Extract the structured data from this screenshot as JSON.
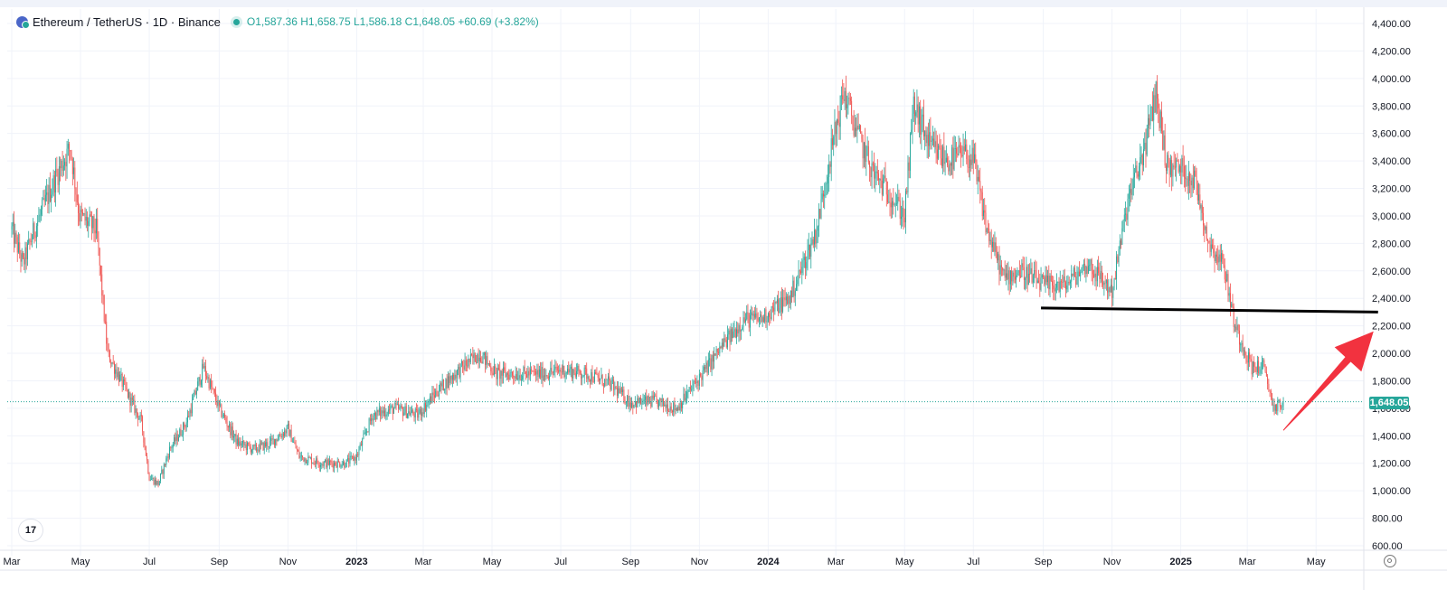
{
  "legend": {
    "symbol_text": "Ethereum / TetherUS · 1D · Binance",
    "ohlc_text": "O1,587.36 H1,658.75 L1,586.18 C1,648.05 +60.69 (+3.82%)"
  },
  "colors": {
    "up": "#26a69a",
    "down": "#ef5350",
    "line": "#000000",
    "arrow": "#f2323f"
  },
  "tv_logo": "17",
  "chart_data": {
    "type": "candlestick",
    "title": "Ethereum / TetherUS · 1D · Binance",
    "ylim": [
      600,
      4400
    ],
    "y_ticks": [
      4400,
      4200,
      4000,
      3800,
      3600,
      3400,
      3200,
      3000,
      2800,
      2600,
      2400,
      2200,
      2000,
      1800,
      1600,
      1400,
      1200,
      1000,
      800,
      600
    ],
    "y_tick_labels": [
      "4,400.00",
      "4,200.00",
      "4,000.00",
      "3,800.00",
      "3,600.00",
      "3,400.00",
      "3,200.00",
      "3,000.00",
      "2,800.00",
      "2,600.00",
      "2,400.00",
      "2,200.00",
      "2,000.00",
      "1,800.00",
      "1,600.00",
      "1,400.00",
      "1,200.00",
      "1,000.00",
      "800.00",
      "600.00"
    ],
    "x_ticks": [
      {
        "label": "Mar",
        "t": 0,
        "bold": false
      },
      {
        "label": "May",
        "t": 61,
        "bold": false
      },
      {
        "label": "Jul",
        "t": 122,
        "bold": false
      },
      {
        "label": "Sep",
        "t": 184,
        "bold": false
      },
      {
        "label": "Nov",
        "t": 245,
        "bold": false
      },
      {
        "label": "2023",
        "t": 306,
        "bold": true
      },
      {
        "label": "Mar",
        "t": 365,
        "bold": false
      },
      {
        "label": "May",
        "t": 426,
        "bold": false
      },
      {
        "label": "Jul",
        "t": 487,
        "bold": false
      },
      {
        "label": "Sep",
        "t": 549,
        "bold": false
      },
      {
        "label": "Nov",
        "t": 610,
        "bold": false
      },
      {
        "label": "2024",
        "t": 671,
        "bold": true
      },
      {
        "label": "Mar",
        "t": 731,
        "bold": false
      },
      {
        "label": "May",
        "t": 792,
        "bold": false
      },
      {
        "label": "Jul",
        "t": 853,
        "bold": false
      },
      {
        "label": "Sep",
        "t": 915,
        "bold": false
      },
      {
        "label": "Nov",
        "t": 976,
        "bold": false
      },
      {
        "label": "2025",
        "t": 1037,
        "bold": true
      },
      {
        "label": "Mar",
        "t": 1096,
        "bold": false
      },
      {
        "label": "May",
        "t": 1157,
        "bold": false
      }
    ],
    "x_range_days": [
      0,
      1196
    ],
    "close_path_approx": [
      [
        0,
        2900
      ],
      [
        10,
        2650
      ],
      [
        20,
        2900
      ],
      [
        40,
        3300
      ],
      [
        52,
        3500
      ],
      [
        60,
        3000
      ],
      [
        75,
        2900
      ],
      [
        85,
        2000
      ],
      [
        100,
        1750
      ],
      [
        115,
        1500
      ],
      [
        122,
        1100
      ],
      [
        130,
        1050
      ],
      [
        140,
        1300
      ],
      [
        155,
        1500
      ],
      [
        170,
        1900
      ],
      [
        184,
        1600
      ],
      [
        200,
        1350
      ],
      [
        215,
        1300
      ],
      [
        230,
        1350
      ],
      [
        245,
        1450
      ],
      [
        255,
        1250
      ],
      [
        275,
        1200
      ],
      [
        296,
        1200
      ],
      [
        306,
        1250
      ],
      [
        320,
        1550
      ],
      [
        340,
        1600
      ],
      [
        360,
        1550
      ],
      [
        380,
        1750
      ],
      [
        400,
        1900
      ],
      [
        415,
        2000
      ],
      [
        430,
        1850
      ],
      [
        450,
        1850
      ],
      [
        470,
        1850
      ],
      [
        490,
        1880
      ],
      [
        510,
        1850
      ],
      [
        530,
        1780
      ],
      [
        549,
        1640
      ],
      [
        570,
        1650
      ],
      [
        590,
        1600
      ],
      [
        610,
        1820
      ],
      [
        630,
        2050
      ],
      [
        650,
        2250
      ],
      [
        665,
        2250
      ],
      [
        680,
        2350
      ],
      [
        690,
        2400
      ],
      [
        700,
        2600
      ],
      [
        714,
        2900
      ],
      [
        725,
        3400
      ],
      [
        738,
        3900
      ],
      [
        750,
        3600
      ],
      [
        765,
        3300
      ],
      [
        780,
        3150
      ],
      [
        792,
        3000
      ],
      [
        800,
        3800
      ],
      [
        815,
        3500
      ],
      [
        830,
        3400
      ],
      [
        845,
        3450
      ],
      [
        853,
        3400
      ],
      [
        865,
        2900
      ],
      [
        880,
        2550
      ],
      [
        895,
        2600
      ],
      [
        915,
        2500
      ],
      [
        935,
        2500
      ],
      [
        955,
        2650
      ],
      [
        976,
        2450
      ],
      [
        990,
        3100
      ],
      [
        1005,
        3500
      ],
      [
        1015,
        3900
      ],
      [
        1025,
        3350
      ],
      [
        1037,
        3350
      ],
      [
        1050,
        3250
      ],
      [
        1062,
        2800
      ],
      [
        1075,
        2650
      ],
      [
        1085,
        2200
      ],
      [
        1100,
        1900
      ],
      [
        1110,
        1900
      ],
      [
        1120,
        1600
      ],
      [
        1128,
        1648
      ]
    ],
    "last_price": 1648.05,
    "last_price_label": "1,648.05",
    "annotations": [
      {
        "type": "horizontal_support",
        "from": [
          913,
          2330
        ],
        "to": [
          1212,
          2300
        ]
      },
      {
        "type": "arrow",
        "from": [
          1128,
          1440
        ],
        "to": [
          1208,
          2160
        ]
      }
    ]
  }
}
